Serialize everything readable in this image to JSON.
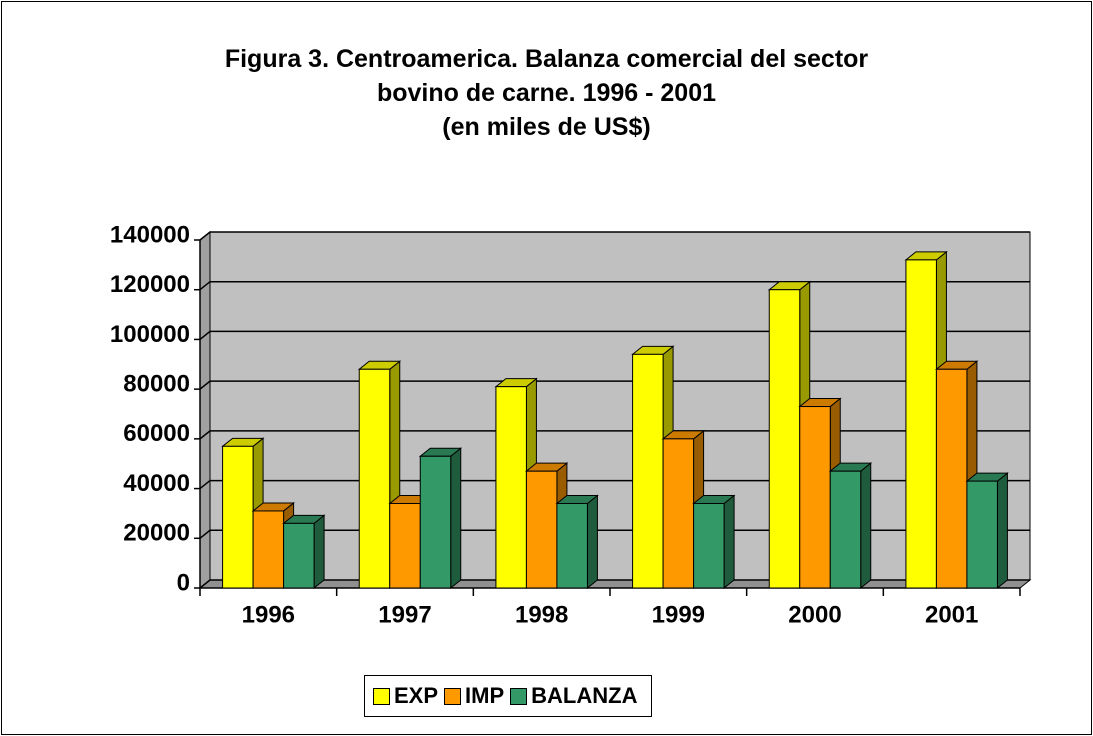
{
  "chart_data": {
    "type": "bar3d",
    "title": "Figura 3. Centroamerica. Balanza comercial del sector bovino de carne. 1996 - 2001",
    "subtitle": "(en miles de US$)",
    "categories": [
      "1996",
      "1997",
      "1998",
      "1999",
      "2000",
      "2001"
    ],
    "series": [
      {
        "name": "EXP",
        "color": "#ffff00",
        "values": [
          57000,
          88000,
          81000,
          94000,
          120000,
          132000
        ]
      },
      {
        "name": "IMP",
        "color": "#ff9900",
        "values": [
          31000,
          34000,
          47000,
          60000,
          73000,
          88000
        ]
      },
      {
        "name": "BALANZA",
        "color": "#339966",
        "values": [
          26000,
          53000,
          34000,
          34000,
          47000,
          43000
        ]
      }
    ],
    "ylim": [
      0,
      140000
    ],
    "yticks": [
      0,
      20000,
      40000,
      60000,
      80000,
      100000,
      120000,
      140000
    ],
    "grid": true
  }
}
